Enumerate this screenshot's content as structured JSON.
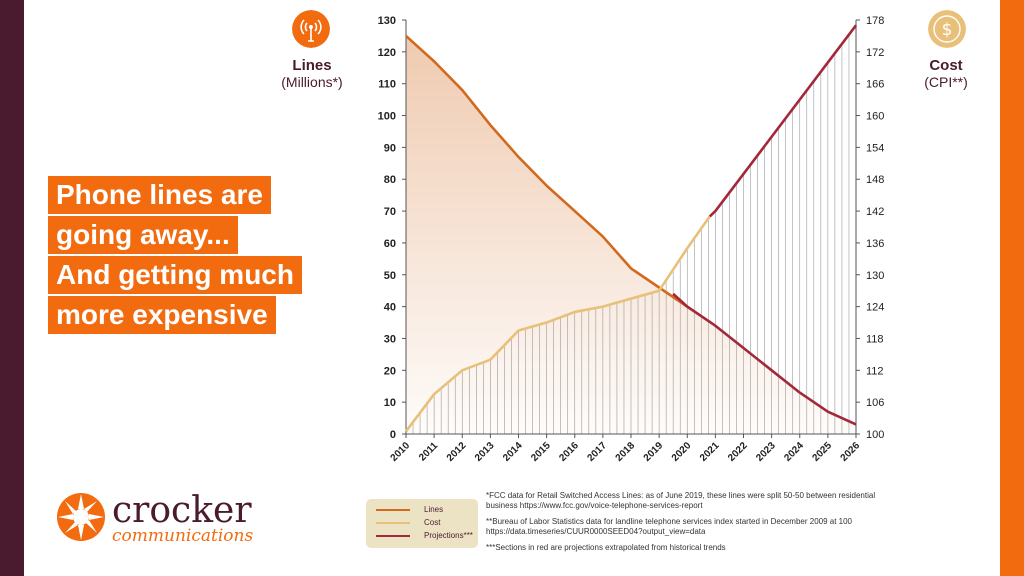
{
  "headline": [
    "Phone lines are",
    "going away...",
    "And getting much",
    "more expensive"
  ],
  "left_axis": {
    "title": "Lines",
    "subtitle": "(Millions*)"
  },
  "right_axis": {
    "title": "Cost",
    "subtitle": "(CPI**)"
  },
  "logo": {
    "name": "crocker",
    "tagline": "communications"
  },
  "legend": [
    {
      "label": "Lines",
      "color": "#d2691e"
    },
    {
      "label": "Cost",
      "color": "#e8c07a"
    },
    {
      "label": "Projections***",
      "color": "#a3283a"
    }
  ],
  "notes": [
    "*FCC data for Retail Switched Access Lines: as of June 2019, these lines were split 50-50 between residential business https://www.fcc.gov/voice-telephone-services-report",
    "**Bureau of Labor Statistics data for landline telephone services index started in December 2009 at 100 https://data.timeseries/CUUR0000SEED04?output_view=data",
    "***Sections in red are projections extrapolated from historical trends"
  ],
  "colors": {
    "lines": "#d2691e",
    "cost": "#e8c07a",
    "projection": "#a3283a",
    "brand_orange": "#f26b0f",
    "brand_dark": "#4a1a2e"
  },
  "chart_data": {
    "type": "line",
    "x": [
      "2010",
      "2011",
      "2012",
      "2013",
      "2014",
      "2015",
      "2016",
      "2017",
      "2018",
      "2019",
      "2020",
      "2021",
      "2022",
      "2023",
      "2024",
      "2025",
      "2026"
    ],
    "ylim_left": [
      0,
      130
    ],
    "ylim_right": [
      100,
      178
    ],
    "yticks_left": [
      0,
      10,
      20,
      30,
      40,
      50,
      60,
      70,
      80,
      90,
      100,
      110,
      120,
      130
    ],
    "yticks_right": [
      100,
      106,
      112,
      118,
      124,
      130,
      136,
      142,
      148,
      154,
      160,
      166,
      172,
      178
    ],
    "series": [
      {
        "name": "Lines",
        "axis": "left",
        "x": [
          2010,
          2011,
          2012,
          2013,
          2014,
          2015,
          2016,
          2017,
          2018,
          2019,
          2020
        ],
        "values": [
          125,
          117,
          108,
          97,
          87,
          78,
          70,
          62,
          52,
          46,
          40
        ]
      },
      {
        "name": "Cost",
        "axis": "right",
        "x": [
          2010,
          2011,
          2012,
          2013,
          2014,
          2015,
          2016,
          2017,
          2018,
          2019,
          2020,
          2020.8
        ],
        "values": [
          100.5,
          107.5,
          112,
          114,
          119.5,
          121,
          123,
          124,
          125.5,
          127,
          135,
          141
        ]
      },
      {
        "name": "Projections***",
        "axis": "left",
        "x": [
          2019.5,
          2020,
          2021,
          2022,
          2023,
          2024,
          2025,
          2026
        ],
        "values": [
          44,
          40,
          34,
          27,
          20,
          13,
          7,
          3
        ]
      },
      {
        "name": "Projections***",
        "axis": "right",
        "x": [
          2020.8,
          2021,
          2022,
          2023,
          2024,
          2025,
          2026
        ],
        "values": [
          141,
          142,
          149,
          156,
          163,
          170,
          177
        ]
      }
    ]
  }
}
